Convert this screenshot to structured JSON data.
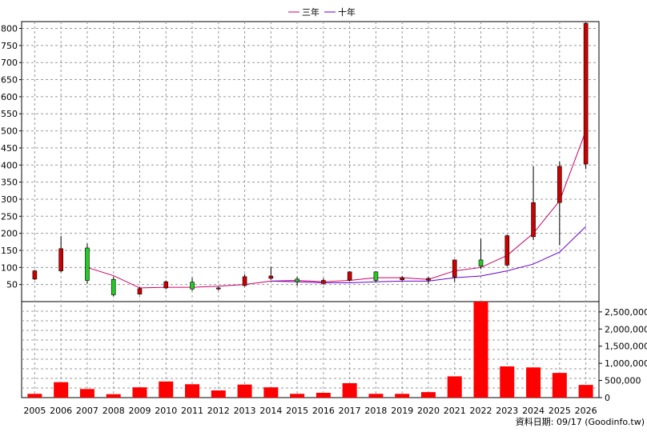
{
  "chart_data": {
    "type": "candlestick-with-volume",
    "legend": [
      "三年",
      "十年"
    ],
    "years": [
      "2005",
      "2006",
      "2007",
      "2008",
      "2009",
      "2010",
      "2011",
      "2012",
      "2013",
      "2014",
      "2015",
      "2016",
      "2017",
      "2018",
      "2019",
      "2020",
      "2021",
      "2022",
      "2023",
      "2024",
      "2025",
      "2026"
    ],
    "price_axis": {
      "ylim": [
        0,
        820
      ],
      "ticks": [
        50,
        100,
        150,
        200,
        250,
        300,
        350,
        400,
        450,
        500,
        550,
        600,
        650,
        700,
        750,
        800
      ]
    },
    "volume_axis": {
      "ylim": [
        0,
        2800000
      ],
      "ticks": [
        0,
        500000,
        1000000,
        1500000,
        2000000,
        2500000
      ],
      "tick_labels": [
        "0",
        "500,000",
        "1,000,000",
        "1,500,000",
        "2,000,000",
        "2,500,000"
      ]
    },
    "candles": [
      {
        "year": "2005",
        "open": 90,
        "close": 66,
        "high": 93,
        "low": 63,
        "color": "red"
      },
      {
        "year": "2006",
        "open": 155,
        "close": 90,
        "high": 192,
        "low": 86,
        "color": "red"
      },
      {
        "year": "2007",
        "open": 157,
        "close": 62,
        "high": 170,
        "low": 52,
        "color": "green"
      },
      {
        "year": "2008",
        "open": 65,
        "close": 20,
        "high": 72,
        "low": 16,
        "color": "green"
      },
      {
        "year": "2009",
        "open": 38,
        "close": 22,
        "high": 42,
        "low": 20,
        "color": "red"
      },
      {
        "year": "2010",
        "open": 58,
        "close": 40,
        "high": 62,
        "low": 36,
        "color": "red"
      },
      {
        "year": "2011",
        "open": 57,
        "close": 37,
        "high": 70,
        "low": 32,
        "color": "green"
      },
      {
        "year": "2012",
        "open": 40,
        "close": 37,
        "high": 43,
        "low": 33,
        "color": "red"
      },
      {
        "year": "2013",
        "open": 73,
        "close": 47,
        "high": 80,
        "low": 44,
        "color": "red"
      },
      {
        "year": "2014",
        "open": 75,
        "close": 68,
        "high": 102,
        "low": 64,
        "color": "red"
      },
      {
        "year": "2015",
        "open": 66,
        "close": 58,
        "high": 73,
        "low": 47,
        "color": "green"
      },
      {
        "year": "2016",
        "open": 62,
        "close": 53,
        "high": 68,
        "low": 49,
        "color": "red"
      },
      {
        "year": "2017",
        "open": 87,
        "close": 63,
        "high": 89,
        "low": 60,
        "color": "red"
      },
      {
        "year": "2018",
        "open": 87,
        "close": 62,
        "high": 89,
        "low": 57,
        "color": "green"
      },
      {
        "year": "2019",
        "open": 70,
        "close": 64,
        "high": 75,
        "low": 60,
        "color": "red"
      },
      {
        "year": "2020",
        "open": 68,
        "close": 63,
        "high": 72,
        "low": 51,
        "color": "red"
      },
      {
        "year": "2021",
        "open": 122,
        "close": 72,
        "high": 123,
        "low": 58,
        "color": "red"
      },
      {
        "year": "2022",
        "open": 122,
        "close": 104,
        "high": 184,
        "low": 95,
        "color": "green"
      },
      {
        "year": "2023",
        "open": 193,
        "close": 107,
        "high": 196,
        "low": 103,
        "color": "red"
      },
      {
        "year": "2024",
        "open": 290,
        "close": 190,
        "high": 396,
        "low": 180,
        "color": "red"
      },
      {
        "year": "2025",
        "open": 396,
        "close": 290,
        "high": 410,
        "low": 165,
        "color": "red"
      },
      {
        "year": "2026",
        "open": 815,
        "close": 403,
        "high": 818,
        "low": 388,
        "color": "red"
      }
    ],
    "series": [
      {
        "name": "三年",
        "color": "#cc0066",
        "x": [
          "2007",
          "2008",
          "2009",
          "2010",
          "2011",
          "2012",
          "2013",
          "2014",
          "2015",
          "2016",
          "2017",
          "2018",
          "2019",
          "2020",
          "2021",
          "2022",
          "2023",
          "2024",
          "2025",
          "2026"
        ],
        "values": [
          100,
          76,
          40,
          42,
          42,
          45,
          50,
          60,
          62,
          58,
          62,
          70,
          70,
          65,
          90,
          100,
          135,
          200,
          295,
          500
        ]
      },
      {
        "name": "十年",
        "color": "#6600cc",
        "x": [
          "2014",
          "2015",
          "2016",
          "2017",
          "2018",
          "2019",
          "2020",
          "2021",
          "2022",
          "2023",
          "2024",
          "2025",
          "2026"
        ],
        "values": [
          60,
          58,
          55,
          55,
          58,
          60,
          60,
          70,
          75,
          90,
          110,
          145,
          220
        ]
      }
    ],
    "volume": [
      110000,
      450000,
      250000,
      100000,
      300000,
      470000,
      390000,
      210000,
      380000,
      300000,
      110000,
      140000,
      420000,
      110000,
      110000,
      160000,
      620000,
      2800000,
      910000,
      880000,
      720000,
      370000
    ],
    "volume_color": "#ff0000",
    "candle_colors": {
      "red": "#cc0000",
      "green": "#22cc22"
    },
    "grid": true
  },
  "source_label": "資料日期: 09/17  (Goodinfo.tw)"
}
